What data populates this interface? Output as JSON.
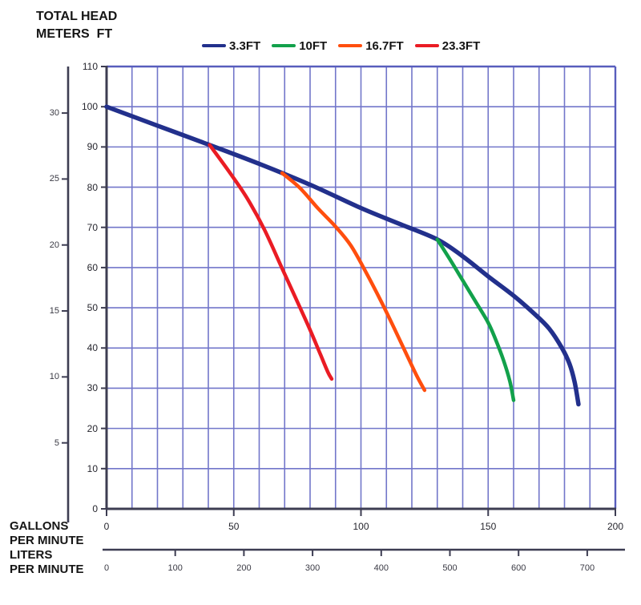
{
  "title_block": {
    "line1": "TOTAL HEAD",
    "line2": "METERS  FT"
  },
  "bottom_labels": {
    "gallons_line1": "GALLONS",
    "gallons_line2": "PER MINUTE",
    "liters_line1": "LITERS",
    "liters_line2": "PER MINUTE"
  },
  "colors": {
    "grid": "#7276ca",
    "plot_border_top_right": "#585dbd",
    "axis_dark": "#3d3d52",
    "text": "#151515",
    "series_blue": "#22308c",
    "series_green": "#12a14b",
    "series_orange": "#ff4e0e",
    "series_red": "#ea1c24"
  },
  "chart_data": {
    "type": "line",
    "title": "",
    "grid": true,
    "legend_position": "top",
    "x_axis": {
      "label": "GALLONS PER MINUTE",
      "unit": "GPM",
      "min": 0,
      "max": 200,
      "tick_labels": [
        0,
        50,
        100,
        150,
        200
      ],
      "gridline_step": 10
    },
    "x2_axis": {
      "label": "LITERS PER MINUTE",
      "unit": "L/min",
      "tick_labels": [
        0,
        100,
        200,
        300,
        400,
        500,
        600,
        700
      ]
    },
    "y_axis": {
      "label": "TOTAL HEAD FT",
      "unit": "FT",
      "min": 0,
      "max": 110,
      "tick_labels": [
        0,
        10,
        20,
        30,
        40,
        50,
        60,
        70,
        80,
        90,
        100,
        110
      ],
      "gridline_step": 10
    },
    "y2_axis": {
      "label": "TOTAL HEAD METERS",
      "unit": "m",
      "tick_labels": [
        5,
        10,
        15,
        20,
        25,
        30
      ]
    },
    "series": [
      {
        "name": "3.3FT",
        "color": "#22308c",
        "stroke_width": 5.5,
        "points": [
          [
            0,
            100
          ],
          [
            20,
            95.3
          ],
          [
            40,
            90.6
          ],
          [
            60,
            85.8
          ],
          [
            80,
            80.6
          ],
          [
            100,
            74.8
          ],
          [
            115,
            70.9
          ],
          [
            130,
            67
          ],
          [
            140,
            62.8
          ],
          [
            150,
            57.8
          ],
          [
            160,
            53
          ],
          [
            168,
            48.6
          ],
          [
            174,
            44.8
          ],
          [
            179,
            40
          ],
          [
            182,
            36
          ],
          [
            184,
            31.5
          ],
          [
            185.5,
            26
          ]
        ]
      },
      {
        "name": "10FT",
        "color": "#12a14b",
        "stroke_width": 4.5,
        "points": [
          [
            130,
            67
          ],
          [
            135,
            62
          ],
          [
            140,
            56.8
          ],
          [
            145,
            51.6
          ],
          [
            150,
            46.3
          ],
          [
            153,
            42
          ],
          [
            156,
            37
          ],
          [
            158.5,
            31.8
          ],
          [
            160,
            27
          ]
        ]
      },
      {
        "name": "16.7FT",
        "color": "#ff4e0e",
        "stroke_width": 4.5,
        "points": [
          [
            69,
            83.5
          ],
          [
            76,
            79.8
          ],
          [
            83,
            74.8
          ],
          [
            90,
            70.2
          ],
          [
            96,
            65.5
          ],
          [
            102,
            58.8
          ],
          [
            108,
            51.5
          ],
          [
            113,
            45
          ],
          [
            118,
            38.3
          ],
          [
            122,
            33
          ],
          [
            125,
            29.5
          ]
        ]
      },
      {
        "name": "23.3FT",
        "color": "#ea1c24",
        "stroke_width": 4.5,
        "points": [
          [
            40.5,
            90.5
          ],
          [
            48,
            84
          ],
          [
            55,
            77.5
          ],
          [
            62,
            69.5
          ],
          [
            69,
            59.8
          ],
          [
            75,
            51.5
          ],
          [
            80,
            44.5
          ],
          [
            84,
            38.5
          ],
          [
            87,
            34
          ],
          [
            88.5,
            32.3
          ]
        ]
      }
    ]
  }
}
